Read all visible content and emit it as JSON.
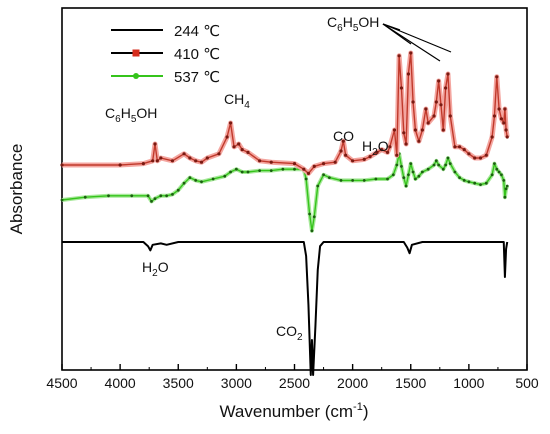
{
  "chart_data": {
    "type": "line",
    "xlabel": "Wavenumber (cm",
    "xlabel_sup": "-1",
    "xlabel_close": ")",
    "ylabel": "Absorbance",
    "xlim": [
      4500,
      500
    ],
    "x_reversed": true,
    "y_ticks_shown": false,
    "xticks": [
      "4500",
      "4000",
      "3500",
      "3000",
      "2500",
      "2000",
      "1500",
      "1000",
      "500"
    ],
    "legend_position": "top-left",
    "series": [
      {
        "name": "244 ℃",
        "color": "#000000",
        "baseline": 0.0,
        "points": [
          [
            4500,
            0.0
          ],
          [
            3800,
            0.0
          ],
          [
            3760,
            -0.03
          ],
          [
            3740,
            -0.06
          ],
          [
            3720,
            -0.02
          ],
          [
            3650,
            -0.01
          ],
          [
            3600,
            -0.02
          ],
          [
            3500,
            0.0
          ],
          [
            2420,
            0.0
          ],
          [
            2400,
            -0.1
          ],
          [
            2380,
            -0.45
          ],
          [
            2360,
            -0.95
          ],
          [
            2350,
            -0.7
          ],
          [
            2340,
            -0.95
          ],
          [
            2320,
            -0.6
          ],
          [
            2300,
            -0.2
          ],
          [
            2280,
            -0.03
          ],
          [
            2250,
            0.0
          ],
          [
            1560,
            0.0
          ],
          [
            1530,
            -0.04
          ],
          [
            1510,
            -0.08
          ],
          [
            1490,
            -0.02
          ],
          [
            1400,
            0.0
          ],
          [
            700,
            0.0
          ],
          [
            690,
            -0.25
          ],
          [
            680,
            -0.05
          ],
          [
            670,
            0.0
          ]
        ]
      },
      {
        "name": "410 ℃",
        "color": "#d62d1d",
        "baseline": 0.55,
        "points": [
          [
            4500,
            0.55
          ],
          [
            4000,
            0.55
          ],
          [
            3800,
            0.56
          ],
          [
            3720,
            0.58
          ],
          [
            3700,
            0.7
          ],
          [
            3680,
            0.58
          ],
          [
            3650,
            0.6
          ],
          [
            3550,
            0.58
          ],
          [
            3450,
            0.63
          ],
          [
            3400,
            0.6
          ],
          [
            3350,
            0.58
          ],
          [
            3300,
            0.57
          ],
          [
            3250,
            0.6
          ],
          [
            3150,
            0.63
          ],
          [
            3080,
            0.75
          ],
          [
            3050,
            0.85
          ],
          [
            3020,
            0.68
          ],
          [
            2980,
            0.7
          ],
          [
            2950,
            0.66
          ],
          [
            2900,
            0.64
          ],
          [
            2800,
            0.58
          ],
          [
            2700,
            0.57
          ],
          [
            2500,
            0.56
          ],
          [
            2420,
            0.52
          ],
          [
            2380,
            0.49
          ],
          [
            2330,
            0.54
          ],
          [
            2250,
            0.56
          ],
          [
            2150,
            0.57
          ],
          [
            2100,
            0.65
          ],
          [
            2080,
            0.72
          ],
          [
            2060,
            0.62
          ],
          [
            2000,
            0.58
          ],
          [
            1900,
            0.59
          ],
          [
            1850,
            0.61
          ],
          [
            1790,
            0.64
          ],
          [
            1750,
            0.66
          ],
          [
            1700,
            0.64
          ],
          [
            1680,
            0.68
          ],
          [
            1640,
            0.8
          ],
          [
            1620,
            0.62
          ],
          [
            1600,
            1.33
          ],
          [
            1580,
            1.1
          ],
          [
            1560,
            0.78
          ],
          [
            1540,
            0.7
          ],
          [
            1520,
            1.2
          ],
          [
            1500,
            1.35
          ],
          [
            1480,
            1.0
          ],
          [
            1460,
            0.8
          ],
          [
            1430,
            0.72
          ],
          [
            1400,
            0.8
          ],
          [
            1370,
            0.95
          ],
          [
            1350,
            0.85
          ],
          [
            1300,
            0.9
          ],
          [
            1280,
            1.0
          ],
          [
            1260,
            1.15
          ],
          [
            1240,
            0.98
          ],
          [
            1220,
            0.8
          ],
          [
            1200,
            1.1
          ],
          [
            1180,
            1.2
          ],
          [
            1160,
            0.9
          ],
          [
            1120,
            0.68
          ],
          [
            1080,
            0.68
          ],
          [
            1040,
            0.66
          ],
          [
            1000,
            0.63
          ],
          [
            950,
            0.6
          ],
          [
            900,
            0.6
          ],
          [
            850,
            0.62
          ],
          [
            800,
            0.75
          ],
          [
            780,
            0.9
          ],
          [
            760,
            1.18
          ],
          [
            740,
            0.95
          ],
          [
            720,
            0.88
          ],
          [
            700,
            0.85
          ],
          [
            690,
            0.95
          ],
          [
            680,
            0.8
          ],
          [
            670,
            0.75
          ]
        ]
      },
      {
        "name": "537 ℃",
        "color": "#35c41b",
        "baseline": 0.3,
        "points": [
          [
            4500,
            0.3
          ],
          [
            4300,
            0.32
          ],
          [
            4100,
            0.33
          ],
          [
            3900,
            0.33
          ],
          [
            3760,
            0.33
          ],
          [
            3730,
            0.29
          ],
          [
            3700,
            0.31
          ],
          [
            3650,
            0.33
          ],
          [
            3600,
            0.33
          ],
          [
            3550,
            0.34
          ],
          [
            3500,
            0.37
          ],
          [
            3450,
            0.42
          ],
          [
            3400,
            0.46
          ],
          [
            3350,
            0.44
          ],
          [
            3300,
            0.43
          ],
          [
            3200,
            0.45
          ],
          [
            3100,
            0.47
          ],
          [
            3050,
            0.5
          ],
          [
            3000,
            0.52
          ],
          [
            2950,
            0.5
          ],
          [
            2900,
            0.5
          ],
          [
            2800,
            0.51
          ],
          [
            2700,
            0.51
          ],
          [
            2600,
            0.52
          ],
          [
            2500,
            0.52
          ],
          [
            2420,
            0.52
          ],
          [
            2400,
            0.45
          ],
          [
            2370,
            0.2
          ],
          [
            2350,
            0.08
          ],
          [
            2330,
            0.18
          ],
          [
            2300,
            0.4
          ],
          [
            2250,
            0.48
          ],
          [
            2200,
            0.46
          ],
          [
            2100,
            0.44
          ],
          [
            2000,
            0.44
          ],
          [
            1900,
            0.44
          ],
          [
            1800,
            0.45
          ],
          [
            1700,
            0.45
          ],
          [
            1650,
            0.48
          ],
          [
            1620,
            0.55
          ],
          [
            1600,
            0.63
          ],
          [
            1580,
            0.54
          ],
          [
            1560,
            0.46
          ],
          [
            1540,
            0.4
          ],
          [
            1520,
            0.48
          ],
          [
            1500,
            0.56
          ],
          [
            1480,
            0.5
          ],
          [
            1460,
            0.45
          ],
          [
            1430,
            0.47
          ],
          [
            1400,
            0.5
          ],
          [
            1350,
            0.52
          ],
          [
            1300,
            0.55
          ],
          [
            1280,
            0.58
          ],
          [
            1260,
            0.55
          ],
          [
            1220,
            0.52
          ],
          [
            1200,
            0.55
          ],
          [
            1180,
            0.6
          ],
          [
            1160,
            0.56
          ],
          [
            1120,
            0.5
          ],
          [
            1080,
            0.46
          ],
          [
            1040,
            0.44
          ],
          [
            1000,
            0.43
          ],
          [
            950,
            0.42
          ],
          [
            900,
            0.41
          ],
          [
            850,
            0.42
          ],
          [
            800,
            0.48
          ],
          [
            780,
            0.56
          ],
          [
            760,
            0.52
          ],
          [
            740,
            0.5
          ],
          [
            720,
            0.48
          ],
          [
            700,
            0.44
          ],
          [
            690,
            0.32
          ],
          [
            680,
            0.38
          ],
          [
            670,
            0.4
          ]
        ]
      }
    ],
    "annotations": [
      {
        "id": "c6h5oh-left",
        "main": "C",
        "sub1": "6",
        "mid": "H",
        "sub2": "5",
        "tail": "OH"
      },
      {
        "id": "ch4",
        "main": "CH",
        "sub1": "4"
      },
      {
        "id": "co",
        "main": "CO"
      },
      {
        "id": "h2o-upper",
        "main": "H",
        "sub1": "2",
        "tail": "O"
      },
      {
        "id": "c6h5oh-top",
        "main": "C",
        "sub1": "6",
        "mid": "H",
        "sub2": "5",
        "tail": "OH"
      },
      {
        "id": "h2o-lower",
        "main": "H",
        "sub1": "2",
        "tail": "O"
      },
      {
        "id": "co2",
        "main": "CO",
        "sub1": "2"
      }
    ]
  }
}
